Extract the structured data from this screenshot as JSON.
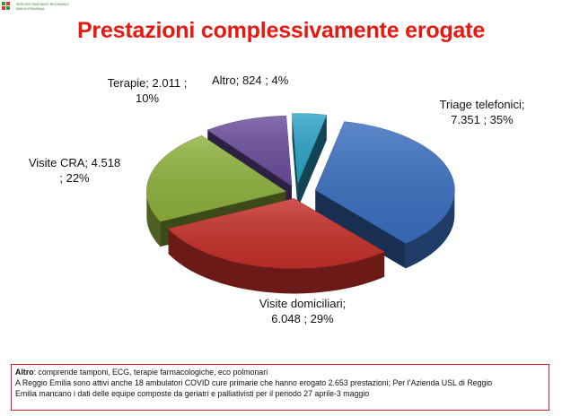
{
  "header": {
    "logo_line1": "SERVIZIO SANITARIO REGIONALE",
    "logo_line2": "EMILIA-ROMAGNA"
  },
  "chart_data": {
    "type": "pie",
    "title": "Prestazioni complessivamente erogate",
    "slices": [
      {
        "name": "Triage telefonici",
        "value": 7351,
        "value_label": "7.351",
        "percent": 35,
        "color": "#3a6fc0",
        "label_lines": [
          "Triage telefonici;",
          "7.351 ; 35%"
        ]
      },
      {
        "name": "Visite domiciliari",
        "value": 6048,
        "value_label": "6.048",
        "percent": 29,
        "color": "#c4302a",
        "label_lines": [
          "Visite domiciliari;",
          "6.048 ; 29%"
        ]
      },
      {
        "name": "Visite CRA",
        "value": 4518,
        "value_label": "4.518",
        "percent": 22,
        "color": "#8eb13d",
        "label_lines": [
          "Visite CRA;  4.518",
          "; 22%"
        ]
      },
      {
        "name": "Terapie",
        "value": 2011,
        "value_label": "2.011",
        "percent": 10,
        "color": "#6b4d9c",
        "label_lines": [
          "Terapie;  2.011 ;",
          "10%"
        ]
      },
      {
        "name": "Altro",
        "value": 824,
        "value_label": "824",
        "percent": 4,
        "color": "#2ba3c6",
        "label_lines": [
          "Altro;  824 ; 4%"
        ]
      }
    ]
  },
  "note": {
    "bold_label": "Altro",
    "line1_rest": ": comprende tamponi, ECG, terapie farmacologiche, eco polmonari",
    "line2": "A Reggio Emilia sono attivi anche 18 ambulatori COVID cure primarie che hanno erogato 2.653 prestazioni; Per l’Azienda USL di Reggio",
    "line3": "Emilia mancano i dati delle equipe composte da geriatri e palliativisti per il periodo 27 aprile-3 maggio"
  }
}
